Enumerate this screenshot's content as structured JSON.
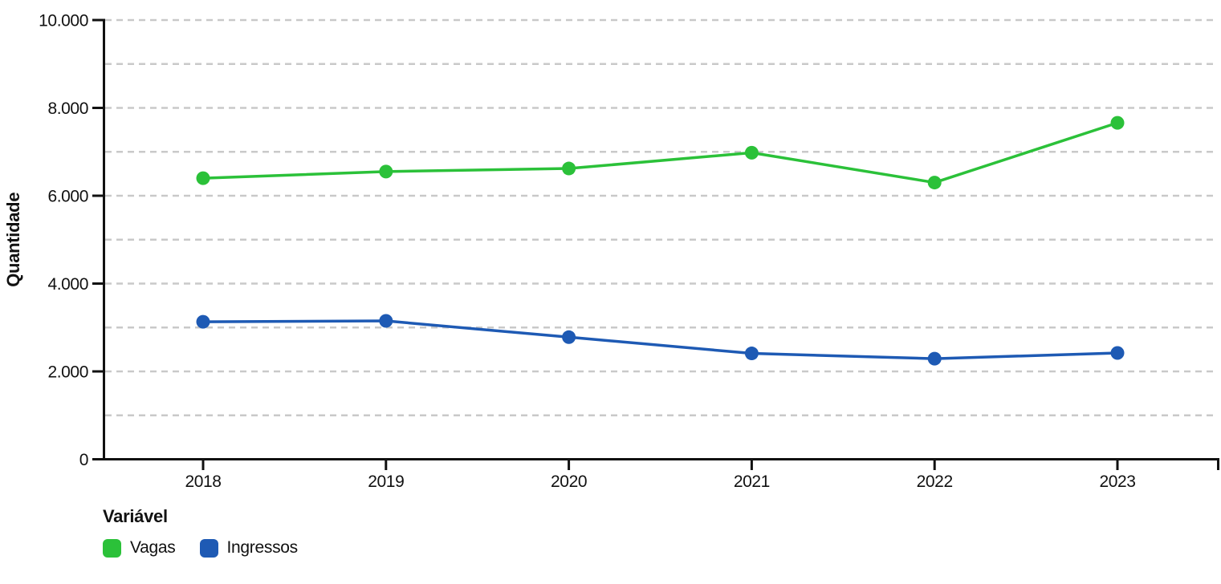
{
  "chart_data": {
    "type": "line",
    "title": "",
    "xlabel": "",
    "ylabel": "Quantidade",
    "ylim": [
      0,
      10000
    ],
    "grid": true,
    "grid_style": "dashed",
    "grid_interval": 1000,
    "legend_position": "bottom-left",
    "legend_title": "Variável",
    "categories": [
      "2018",
      "2019",
      "2020",
      "2021",
      "2022",
      "2023"
    ],
    "y_ticks": [
      {
        "value": 0,
        "label": "0"
      },
      {
        "value": 2000,
        "label": "2.000"
      },
      {
        "value": 4000,
        "label": "4.000"
      },
      {
        "value": 6000,
        "label": "6.000"
      },
      {
        "value": 8000,
        "label": "8.000"
      },
      {
        "value": 10000,
        "label": "10.000"
      }
    ],
    "series": [
      {
        "name": "Vagas",
        "color": "#2bc139",
        "values": [
          6400,
          6550,
          6620,
          6980,
          6300,
          7660
        ]
      },
      {
        "name": "Ingressos",
        "color": "#1e5ab4",
        "values": [
          3130,
          3150,
          2780,
          2410,
          2290,
          2420
        ]
      }
    ]
  },
  "colors": {
    "axis": "#111111",
    "gridline": "#c9c9c9",
    "text": "#111111",
    "background": "#ffffff"
  }
}
